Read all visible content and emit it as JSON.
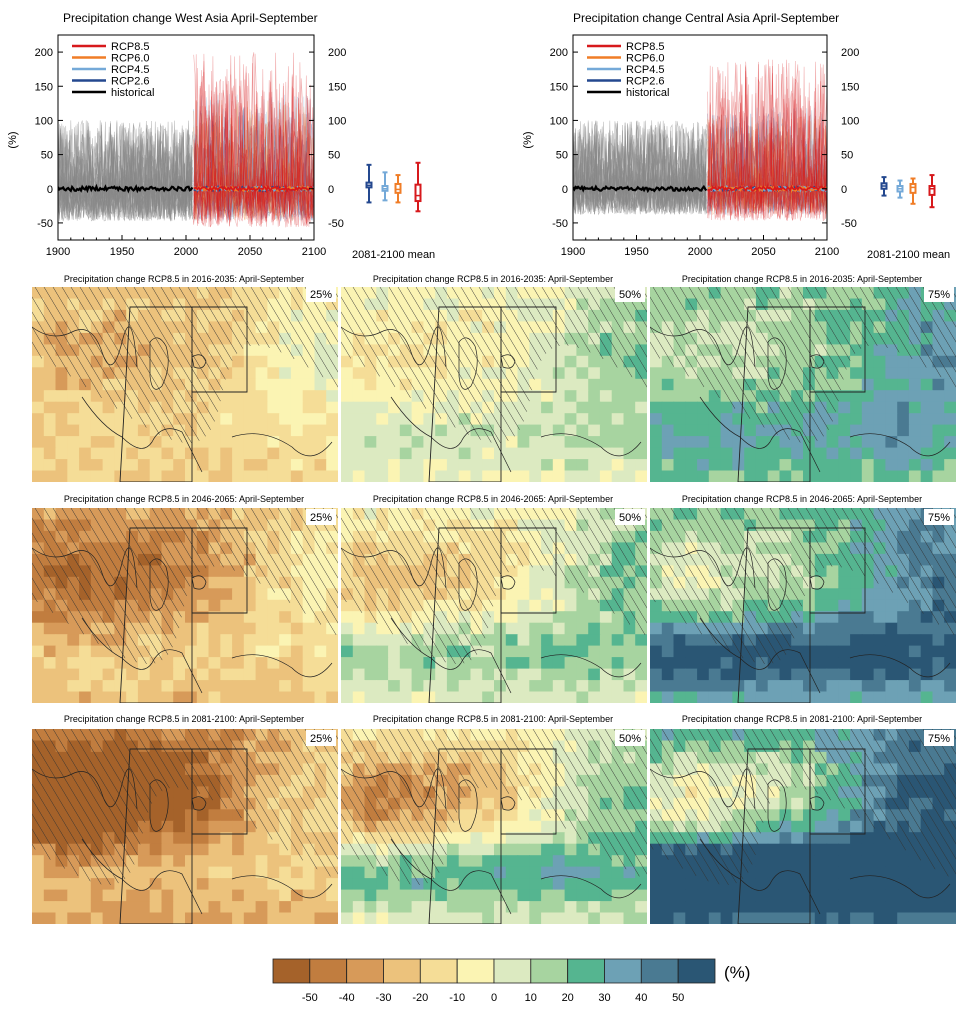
{
  "chart_data": [
    {
      "type": "line",
      "region": "west",
      "title": "Precipitation change West Asia April-September",
      "ylabel": "(%)",
      "xlim": [
        1900,
        2100
      ],
      "ylim": [
        -75,
        225
      ],
      "xticks": [
        1900,
        1950,
        2000,
        2050,
        2100
      ],
      "yticks_left": [
        -50,
        0,
        50,
        100,
        150,
        200
      ],
      "yticks_right": [
        -50,
        0,
        50,
        100,
        150,
        200
      ],
      "legend": [
        "RCP8.5",
        "RCP6.0",
        "RCP4.5",
        "RCP2.6",
        "historical"
      ],
      "legend_position": "top-left",
      "mean_label": "2081-2100 mean",
      "series": [
        {
          "name": "historical",
          "x_range": [
            1900,
            2005
          ],
          "mean": 0,
          "spread_approx": [
            -50,
            100
          ]
        },
        {
          "name": "RCP2.6",
          "x_range": [
            2006,
            2100
          ],
          "mean": 0,
          "spread_approx": [
            -50,
            120
          ]
        },
        {
          "name": "RCP4.5",
          "x_range": [
            2006,
            2100
          ],
          "mean": 0,
          "spread_approx": [
            -50,
            140
          ]
        },
        {
          "name": "RCP6.0",
          "x_range": [
            2006,
            2100
          ],
          "mean": 0,
          "spread_approx": [
            -50,
            130
          ]
        },
        {
          "name": "RCP8.5",
          "x_range": [
            2006,
            2100
          ],
          "mean": 0,
          "spread_approx": [
            -60,
            200
          ]
        }
      ],
      "boxes_2081_2100": [
        {
          "name": "RCP2.6",
          "min": -20,
          "q1": 2,
          "median": 5,
          "q3": 9,
          "max": 35
        },
        {
          "name": "RCP4.5",
          "min": -17,
          "q1": -3,
          "median": 0,
          "q3": 4,
          "max": 24
        },
        {
          "name": "RCP6.0",
          "min": -20,
          "q1": -6,
          "median": -1,
          "q3": 7,
          "max": 20
        },
        {
          "name": "RCP8.5",
          "min": -33,
          "q1": -18,
          "median": -10,
          "q3": 6,
          "max": 38
        }
      ]
    },
    {
      "type": "line",
      "region": "central",
      "title": "Precipitation change Central Asia April-September",
      "ylabel": "(%)",
      "xlim": [
        1900,
        2100
      ],
      "ylim": [
        -75,
        225
      ],
      "xticks": [
        1900,
        1950,
        2000,
        2050,
        2100
      ],
      "yticks_left": [
        -50,
        0,
        50,
        100,
        150,
        200
      ],
      "yticks_right": [
        -50,
        0,
        50,
        100,
        150,
        200
      ],
      "legend": [
        "RCP8.5",
        "RCP6.0",
        "RCP4.5",
        "RCP2.6",
        "historical"
      ],
      "legend_position": "top-left",
      "mean_label": "2081-2100 mean",
      "series": [
        {
          "name": "historical",
          "x_range": [
            1900,
            2005
          ],
          "mean": 0,
          "spread_approx": [
            -40,
            100
          ]
        },
        {
          "name": "RCP2.6",
          "x_range": [
            2006,
            2100
          ],
          "mean": 0,
          "spread_approx": [
            -40,
            110
          ]
        },
        {
          "name": "RCP4.5",
          "x_range": [
            2006,
            2100
          ],
          "mean": 0,
          "spread_approx": [
            -40,
            120
          ]
        },
        {
          "name": "RCP6.0",
          "x_range": [
            2006,
            2100
          ],
          "mean": 0,
          "spread_approx": [
            -40,
            110
          ]
        },
        {
          "name": "RCP8.5",
          "x_range": [
            2006,
            2100
          ],
          "mean": 0,
          "spread_approx": [
            -50,
            190
          ]
        }
      ],
      "boxes_2081_2100": [
        {
          "name": "RCP2.6",
          "min": -10,
          "q1": 0,
          "median": 4,
          "q3": 8,
          "max": 17
        },
        {
          "name": "RCP4.5",
          "min": -13,
          "q1": -4,
          "median": 0,
          "q3": 4,
          "max": 12
        },
        {
          "name": "RCP6.0",
          "min": -22,
          "q1": -6,
          "median": 2,
          "q3": 7,
          "max": 15
        },
        {
          "name": "RCP8.5",
          "min": -27,
          "q1": -9,
          "median": 0,
          "q3": 4,
          "max": 20
        }
      ]
    },
    {
      "type": "heatmap",
      "maps": [
        {
          "title": "Precipitation change RCP8.5 in 2016-2035: April-September",
          "percentile": "25%"
        },
        {
          "title": "Precipitation change RCP8.5 in 2016-2035: April-September",
          "percentile": "50%"
        },
        {
          "title": "Precipitation change RCP8.5 in 2016-2035: April-September",
          "percentile": "75%"
        },
        {
          "title": "Precipitation change RCP8.5 in 2046-2065: April-September",
          "percentile": "25%"
        },
        {
          "title": "Precipitation change RCP8.5 in 2046-2065: April-September",
          "percentile": "50%"
        },
        {
          "title": "Precipitation change RCP8.5 in 2046-2065: April-September",
          "percentile": "75%"
        },
        {
          "title": "Precipitation change RCP8.5 in 2081-2100: April-September",
          "percentile": "25%"
        },
        {
          "title": "Precipitation change RCP8.5 in 2081-2100: April-September",
          "percentile": "50%"
        },
        {
          "title": "Precipitation change RCP8.5 in 2081-2100: April-September",
          "percentile": "75%"
        }
      ]
    }
  ],
  "colorbar": {
    "labels": [
      "-50",
      "-40",
      "-30",
      "-20",
      "-10",
      "0",
      "10",
      "20",
      "30",
      "40",
      "50"
    ],
    "colors": [
      "#a5622a",
      "#c17d3f",
      "#d79a59",
      "#ecc27c",
      "#f5dd97",
      "#fbf4b3",
      "#dceac1",
      "#a7d4a0",
      "#55b590",
      "#6da1b5",
      "#4a7a92",
      "#2a5674"
    ],
    "unit": "(%)"
  },
  "series_colors": {
    "RCP8.5": "#d7191c",
    "RCP6.0": "#f07d27",
    "RCP4.5": "#74a9d8",
    "RCP2.6": "#24488f",
    "historical": "#000000"
  }
}
